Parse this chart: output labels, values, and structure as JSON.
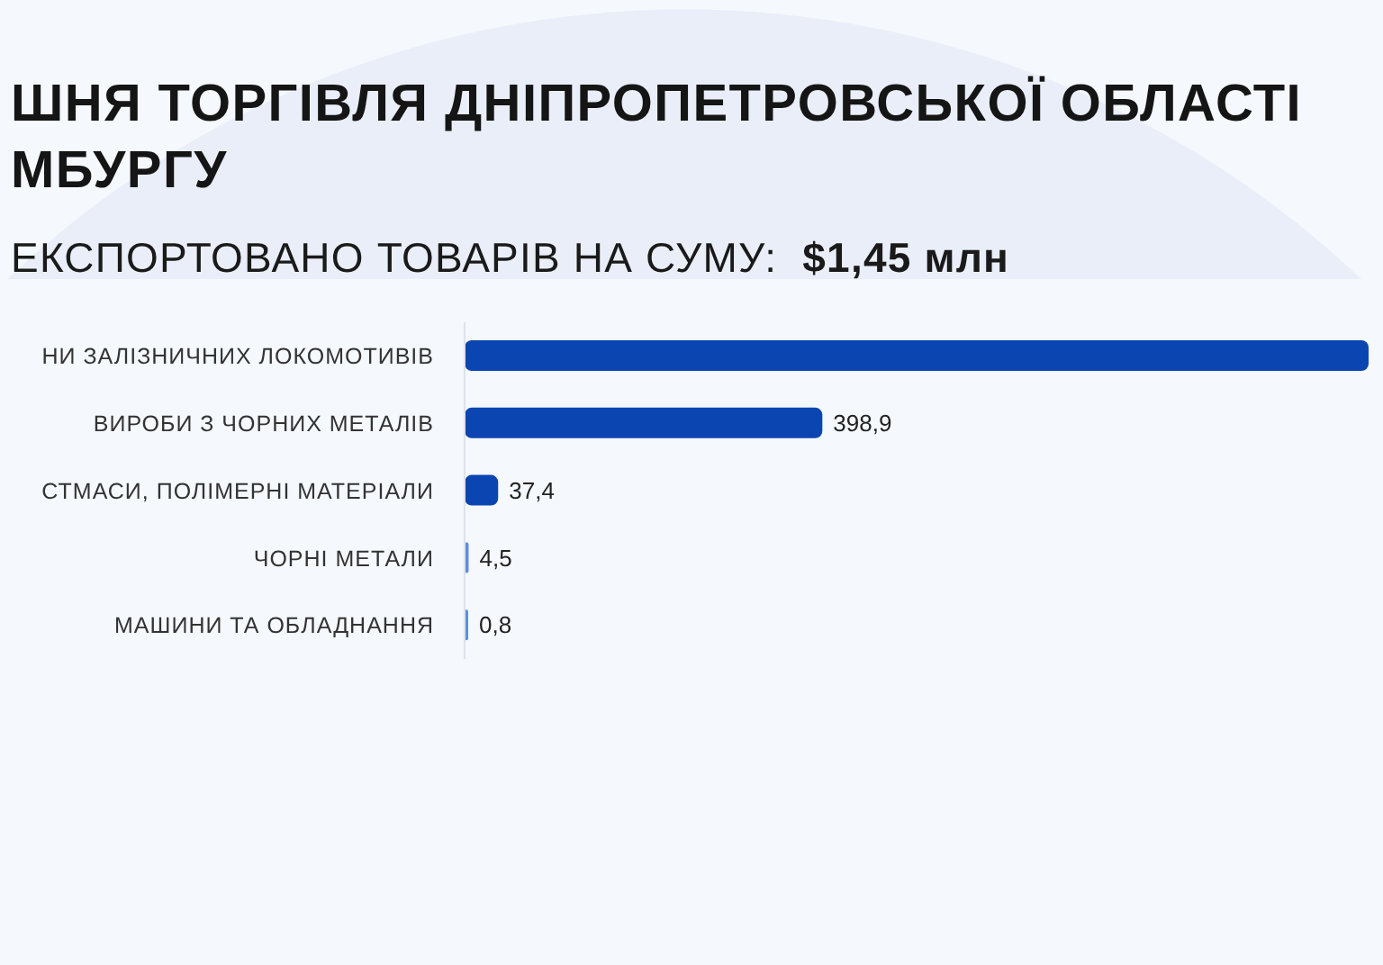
{
  "chart_data": {
    "type": "bar",
    "orientation": "horizontal",
    "title": "ШНЯ ТОРГІВЛЯ ДНІПРОПЕТРОВСЬКОЇ ОБЛАСТІ МБУРГУ",
    "subtitle": "ЕКСПОРТОВАНО ТОВАРІВ НА СУМУ: $1,45 млн",
    "categories": [
      "НИ ЗАЛІЗНИЧНИХ ЛОКОМОТИВІВ",
      "ВИРОБИ З ЧОРНИХ МЕТАЛІВ",
      "СТМАСИ, ПОЛІМЕРНІ МАТЕРІАЛИ",
      "ЧОРНІ МЕТАЛИ",
      "МАШИНИ ТА ОБЛАДНАННЯ"
    ],
    "values": [
      1008,
      398.9,
      37.4,
      4.5,
      0.8
    ],
    "colors": [
      "#0b45b2",
      "#0b45b2",
      "#0b45b2",
      "#5f8ddf",
      "#5f8ddf"
    ],
    "value_labels": [
      null,
      "398,9",
      "37,4",
      "4,5",
      "0,8"
    ],
    "tick_labels": "y"
  }
}
